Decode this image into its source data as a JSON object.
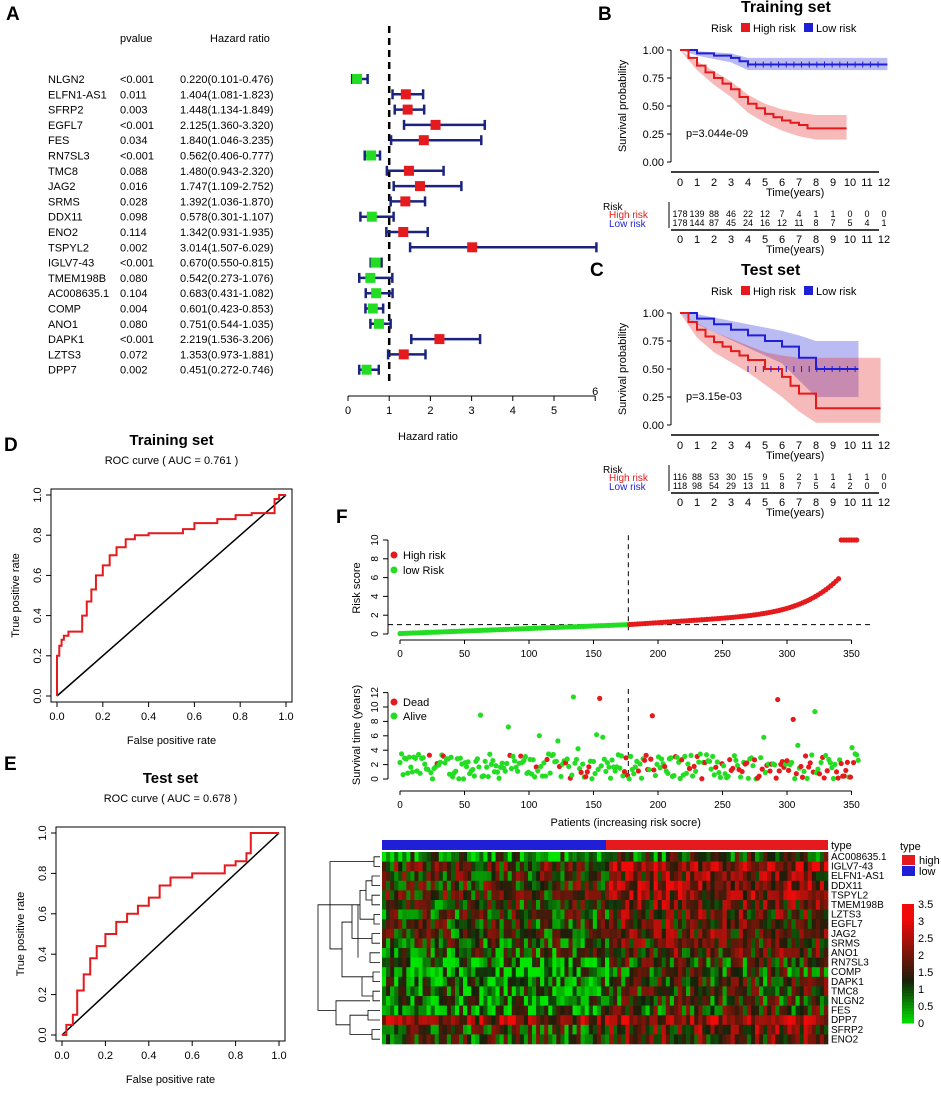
{
  "panels": {
    "A": "A",
    "B": "B",
    "C": "C",
    "D": "D",
    "E": "E",
    "F": "F"
  },
  "forest": {
    "header_pvalue": "pvalue",
    "header_hr": "Hazard ratio",
    "xlabel": "Hazard ratio",
    "ticks": [
      "0",
      "1",
      "2",
      "3",
      "4",
      "5",
      "6"
    ],
    "rows": [
      {
        "gene": "NLGN2",
        "p": "<0.001",
        "hrtext": "0.220(0.101-0.476)",
        "hr": 0.22,
        "lo": 0.101,
        "hi": 0.476
      },
      {
        "gene": "ELFN1-AS1",
        "p": "0.011",
        "hrtext": "1.404(1.081-1.823)",
        "hr": 1.404,
        "lo": 1.081,
        "hi": 1.823
      },
      {
        "gene": "SFRP2",
        "p": "0.003",
        "hrtext": "1.448(1.134-1.849)",
        "hr": 1.448,
        "lo": 1.134,
        "hi": 1.849
      },
      {
        "gene": "EGFL7",
        "p": "<0.001",
        "hrtext": "2.125(1.360-3.320)",
        "hr": 2.125,
        "lo": 1.36,
        "hi": 3.32
      },
      {
        "gene": "FES",
        "p": "0.034",
        "hrtext": "1.840(1.046-3.235)",
        "hr": 1.84,
        "lo": 1.046,
        "hi": 3.235
      },
      {
        "gene": "RN7SL3",
        "p": "<0.001",
        "hrtext": "0.562(0.406-0.777)",
        "hr": 0.562,
        "lo": 0.406,
        "hi": 0.777
      },
      {
        "gene": "TMC8",
        "p": "0.088",
        "hrtext": "1.480(0.943-2.320)",
        "hr": 1.48,
        "lo": 0.943,
        "hi": 2.32
      },
      {
        "gene": "JAG2",
        "p": "0.016",
        "hrtext": "1.747(1.109-2.752)",
        "hr": 1.747,
        "lo": 1.109,
        "hi": 2.752
      },
      {
        "gene": "SRMS",
        "p": "0.028",
        "hrtext": "1.392(1.036-1.870)",
        "hr": 1.392,
        "lo": 1.036,
        "hi": 1.87
      },
      {
        "gene": "DDX11",
        "p": "0.098",
        "hrtext": "0.578(0.301-1.107)",
        "hr": 0.578,
        "lo": 0.301,
        "hi": 1.107
      },
      {
        "gene": "ENO2",
        "p": "0.114",
        "hrtext": "1.342(0.931-1.935)",
        "hr": 1.342,
        "lo": 0.931,
        "hi": 1.935
      },
      {
        "gene": "TSPYL2",
        "p": "0.002",
        "hrtext": "3.014(1.507-6.029)",
        "hr": 3.014,
        "lo": 1.507,
        "hi": 6.029
      },
      {
        "gene": "IGLV7-43",
        "p": "<0.001",
        "hrtext": "0.670(0.550-0.815)",
        "hr": 0.67,
        "lo": 0.55,
        "hi": 0.815
      },
      {
        "gene": "TMEM198B",
        "p": "0.080",
        "hrtext": "0.542(0.273-1.076)",
        "hr": 0.542,
        "lo": 0.273,
        "hi": 1.076
      },
      {
        "gene": "AC008635.1",
        "p": "0.104",
        "hrtext": "0.683(0.431-1.082)",
        "hr": 0.683,
        "lo": 0.431,
        "hi": 1.082
      },
      {
        "gene": "COMP",
        "p": "0.004",
        "hrtext": "0.601(0.423-0.853)",
        "hr": 0.601,
        "lo": 0.423,
        "hi": 0.853
      },
      {
        "gene": "ANO1",
        "p": "0.080",
        "hrtext": "0.751(0.544-1.035)",
        "hr": 0.751,
        "lo": 0.544,
        "hi": 1.035
      },
      {
        "gene": "DAPK1",
        "p": "<0.001",
        "hrtext": "2.219(1.536-3.206)",
        "hr": 2.219,
        "lo": 1.536,
        "hi": 3.206
      },
      {
        "gene": "LZTS3",
        "p": "0.072",
        "hrtext": "1.353(0.973-1.881)",
        "hr": 1.353,
        "lo": 0.973,
        "hi": 1.881
      },
      {
        "gene": "DPP7",
        "p": "0.002",
        "hrtext": "0.451(0.272-0.746)",
        "hr": 0.451,
        "lo": 0.272,
        "hi": 0.746
      }
    ]
  },
  "km": [
    {
      "title": "Training set",
      "legend_title": "Risk",
      "legend_high": "High risk",
      "legend_low": "Low risk",
      "ylabel": "Survival probability",
      "xlabel": "Time(years)",
      "pvalue": "p=3.044e-09",
      "yticks": [
        "0.00",
        "0.25",
        "0.50",
        "0.75",
        "1.00"
      ],
      "xticks": [
        "0",
        "1",
        "2",
        "3",
        "4",
        "5",
        "6",
        "7",
        "8",
        "9",
        "10",
        "11",
        "12"
      ],
      "table_label": "Risk",
      "row_high": "High risk",
      "row_low": "Low risk",
      "high_counts": [
        "178",
        "139",
        "88",
        "46",
        "22",
        "12",
        "7",
        "4",
        "1",
        "1",
        "0",
        "0",
        "0"
      ],
      "low_counts": [
        "178",
        "144",
        "87",
        "45",
        "24",
        "16",
        "12",
        "11",
        "8",
        "7",
        "5",
        "4",
        "1"
      ],
      "high": [
        [
          0,
          1
        ],
        [
          0.5,
          0.93
        ],
        [
          1,
          0.86
        ],
        [
          1.5,
          0.8
        ],
        [
          2,
          0.75
        ],
        [
          2.5,
          0.7
        ],
        [
          3,
          0.65
        ],
        [
          3.5,
          0.58
        ],
        [
          4,
          0.52
        ],
        [
          4.5,
          0.48
        ],
        [
          5,
          0.43
        ],
        [
          5.5,
          0.4
        ],
        [
          6,
          0.37
        ],
        [
          6.5,
          0.35
        ],
        [
          7,
          0.33
        ],
        [
          7.5,
          0.3
        ],
        [
          9.8,
          0.3
        ]
      ],
      "high_lo": [
        [
          0,
          1
        ],
        [
          1,
          0.82
        ],
        [
          2,
          0.69
        ],
        [
          3,
          0.58
        ],
        [
          4,
          0.44
        ],
        [
          5,
          0.35
        ],
        [
          6,
          0.28
        ],
        [
          7,
          0.23
        ],
        [
          8,
          0.2
        ],
        [
          9.8,
          0.2
        ]
      ],
      "high_hi": [
        [
          0,
          1
        ],
        [
          1,
          0.9
        ],
        [
          2,
          0.81
        ],
        [
          3,
          0.72
        ],
        [
          4,
          0.6
        ],
        [
          5,
          0.52
        ],
        [
          6,
          0.47
        ],
        [
          7,
          0.44
        ],
        [
          8,
          0.42
        ],
        [
          9.8,
          0.42
        ]
      ],
      "low": [
        [
          0,
          1
        ],
        [
          1,
          0.97
        ],
        [
          2,
          0.95
        ],
        [
          3,
          0.93
        ],
        [
          3.5,
          0.9
        ],
        [
          4,
          0.87
        ],
        [
          12.2,
          0.87
        ]
      ],
      "low_lo": [
        [
          0,
          1
        ],
        [
          1,
          0.95
        ],
        [
          2,
          0.92
        ],
        [
          3,
          0.89
        ],
        [
          4,
          0.82
        ],
        [
          12.2,
          0.82
        ]
      ],
      "low_hi": [
        [
          0,
          1
        ],
        [
          1,
          0.99
        ],
        [
          2,
          0.98
        ],
        [
          3,
          0.97
        ],
        [
          4,
          0.93
        ],
        [
          12.2,
          0.93
        ]
      ]
    },
    {
      "title": "Test set",
      "legend_title": "Risk",
      "legend_high": "High risk",
      "legend_low": "Low risk",
      "ylabel": "Survival probability",
      "xlabel": "Time(years)",
      "pvalue": "p=3.15e-03",
      "yticks": [
        "0.00",
        "0.25",
        "0.50",
        "0.75",
        "1.00"
      ],
      "xticks": [
        "0",
        "1",
        "2",
        "3",
        "4",
        "5",
        "6",
        "7",
        "8",
        "9",
        "10",
        "11",
        "12"
      ],
      "table_label": "Risk",
      "row_high": "High risk",
      "row_low": "Low risk",
      "high_counts": [
        "116",
        "88",
        "53",
        "30",
        "15",
        "9",
        "5",
        "2",
        "1",
        "1",
        "1",
        "1",
        "0"
      ],
      "low_counts": [
        "118",
        "98",
        "54",
        "29",
        "13",
        "11",
        "8",
        "7",
        "5",
        "4",
        "2",
        "0",
        "0"
      ],
      "high": [
        [
          0,
          1
        ],
        [
          0.5,
          0.92
        ],
        [
          1,
          0.85
        ],
        [
          1.5,
          0.79
        ],
        [
          2,
          0.74
        ],
        [
          2.5,
          0.7
        ],
        [
          3,
          0.66
        ],
        [
          3.5,
          0.62
        ],
        [
          4,
          0.58
        ],
        [
          5,
          0.5
        ],
        [
          6,
          0.43
        ],
        [
          6.5,
          0.35
        ],
        [
          7,
          0.28
        ],
        [
          8,
          0.15
        ],
        [
          11.8,
          0.15
        ]
      ],
      "high_lo": [
        [
          0,
          1
        ],
        [
          1,
          0.78
        ],
        [
          2,
          0.65
        ],
        [
          3,
          0.56
        ],
        [
          4,
          0.47
        ],
        [
          5,
          0.36
        ],
        [
          6,
          0.25
        ],
        [
          7,
          0.12
        ],
        [
          8,
          0.02
        ],
        [
          11.8,
          0.02
        ]
      ],
      "high_hi": [
        [
          0,
          1
        ],
        [
          1,
          0.91
        ],
        [
          2,
          0.83
        ],
        [
          3,
          0.77
        ],
        [
          4,
          0.71
        ],
        [
          5,
          0.65
        ],
        [
          6,
          0.62
        ],
        [
          7,
          0.6
        ],
        [
          8,
          0.6
        ],
        [
          11.8,
          0.6
        ]
      ],
      "low": [
        [
          0,
          1
        ],
        [
          1,
          0.95
        ],
        [
          2,
          0.9
        ],
        [
          3,
          0.85
        ],
        [
          4,
          0.8
        ],
        [
          5,
          0.75
        ],
        [
          6,
          0.7
        ],
        [
          7,
          0.6
        ],
        [
          8,
          0.5
        ],
        [
          10.5,
          0.5
        ]
      ],
      "low_lo": [
        [
          0,
          1
        ],
        [
          1,
          0.9
        ],
        [
          2,
          0.83
        ],
        [
          3,
          0.76
        ],
        [
          4,
          0.69
        ],
        [
          5,
          0.62
        ],
        [
          6,
          0.55
        ],
        [
          7,
          0.4
        ],
        [
          8,
          0.25
        ],
        [
          10.5,
          0.25
        ]
      ],
      "low_hi": [
        [
          0,
          1
        ],
        [
          1,
          0.99
        ],
        [
          2,
          0.96
        ],
        [
          3,
          0.93
        ],
        [
          4,
          0.9
        ],
        [
          5,
          0.87
        ],
        [
          6,
          0.84
        ],
        [
          7,
          0.8
        ],
        [
          8,
          0.75
        ],
        [
          10.5,
          0.75
        ]
      ]
    }
  ],
  "roc": [
    {
      "title": "Training set",
      "subtitle": "ROC curve ( AUC =  0.761 )",
      "xlabel": "False positive rate",
      "ylabel": "True positive rate",
      "ticks": [
        "0.0",
        "0.2",
        "0.4",
        "0.6",
        "0.8",
        "1.0"
      ],
      "points": [
        [
          0,
          0
        ],
        [
          0,
          0.2
        ],
        [
          0.01,
          0.25
        ],
        [
          0.02,
          0.28
        ],
        [
          0.03,
          0.3
        ],
        [
          0.05,
          0.32
        ],
        [
          0.1,
          0.32
        ],
        [
          0.11,
          0.4
        ],
        [
          0.13,
          0.47
        ],
        [
          0.15,
          0.53
        ],
        [
          0.17,
          0.6
        ],
        [
          0.2,
          0.65
        ],
        [
          0.23,
          0.7
        ],
        [
          0.26,
          0.74
        ],
        [
          0.3,
          0.78
        ],
        [
          0.34,
          0.8
        ],
        [
          0.4,
          0.81
        ],
        [
          0.5,
          0.81
        ],
        [
          0.55,
          0.83
        ],
        [
          0.6,
          0.86
        ],
        [
          0.65,
          0.86
        ],
        [
          0.7,
          0.88
        ],
        [
          0.75,
          0.88
        ],
        [
          0.78,
          0.9
        ],
        [
          0.85,
          0.91
        ],
        [
          0.93,
          0.91
        ],
        [
          0.95,
          0.98
        ],
        [
          0.97,
          1
        ],
        [
          1,
          1
        ]
      ]
    },
    {
      "title": "Test set",
      "subtitle": "ROC curve ( AUC =  0.678 )",
      "xlabel": "False positive rate",
      "ylabel": "True positive rate",
      "ticks": [
        "0.0",
        "0.2",
        "0.4",
        "0.6",
        "0.8",
        "1.0"
      ],
      "points": [
        [
          0,
          0
        ],
        [
          0.02,
          0.05
        ],
        [
          0.05,
          0.1
        ],
        [
          0.07,
          0.22
        ],
        [
          0.1,
          0.3
        ],
        [
          0.13,
          0.38
        ],
        [
          0.16,
          0.44
        ],
        [
          0.2,
          0.5
        ],
        [
          0.25,
          0.56
        ],
        [
          0.3,
          0.6
        ],
        [
          0.35,
          0.64
        ],
        [
          0.4,
          0.68
        ],
        [
          0.45,
          0.74
        ],
        [
          0.5,
          0.78
        ],
        [
          0.6,
          0.8
        ],
        [
          0.7,
          0.8
        ],
        [
          0.75,
          0.84
        ],
        [
          0.8,
          0.86
        ],
        [
          0.85,
          0.9
        ],
        [
          0.87,
          1
        ],
        [
          1,
          1
        ]
      ]
    }
  ],
  "riskscore": {
    "ylabel": "Risk score",
    "legend_high": "High risk",
    "legend_low": "low Risk",
    "yticks": [
      "0",
      "2",
      "4",
      "6",
      "8",
      "10"
    ],
    "cutoff_patient": 177,
    "cutoff_score": 1.0,
    "n": 356
  },
  "survtime": {
    "ylabel": "Survival time (years)",
    "xlabel": "Patients (increasing risk socre)",
    "legend_dead": "Dead",
    "legend_alive": "Alive",
    "yticks": [
      "0",
      "2",
      "4",
      "6",
      "8",
      "10",
      "12"
    ],
    "xticks": [
      "0",
      "50",
      "100",
      "150",
      "200",
      "250",
      "300",
      "350"
    ]
  },
  "heatmap": {
    "genes": [
      "AC008635.1",
      "IGLV7-43",
      "ELFN1-AS1",
      "DDX11",
      "TSPYL2",
      "TMEM198B",
      "LZTS3",
      "EGFL7",
      "JAG2",
      "SRMS",
      "ANO1",
      "RN7SL3",
      "COMP",
      "DAPK1",
      "TMC8",
      "NLGN2",
      "FES",
      "DPP7",
      "SFRP2",
      "ENO2"
    ],
    "type_title": "type",
    "type_high": "high",
    "type_low": "low",
    "scale": [
      "3.5",
      "3",
      "2.5",
      "2",
      "1.5",
      "1",
      "0.5",
      "0"
    ]
  },
  "colors": {
    "high": "#e41a1c",
    "low": "#1f1fd6",
    "green": "#22dd22",
    "navy": "#1a237e"
  }
}
